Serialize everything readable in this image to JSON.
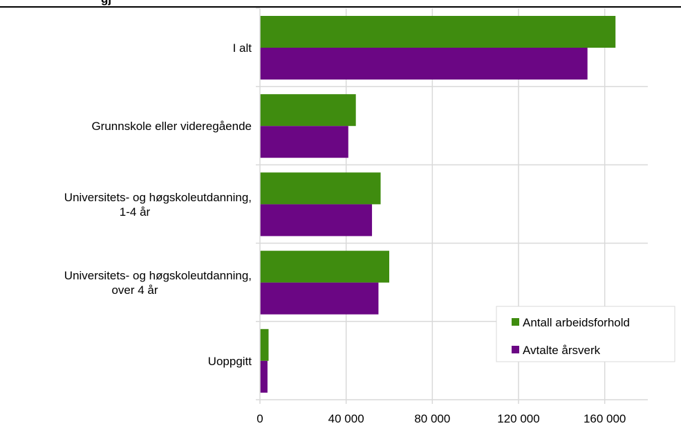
{
  "chart_data": {
    "type": "bar",
    "orientation": "horizontal",
    "title": "gj",
    "categories": [
      [
        "I alt"
      ],
      [
        "Grunnskole eller videregående"
      ],
      [
        "Universitets- og høgskoleutdanning,",
        "1-4 år"
      ],
      [
        "Universitets- og høgskoleutdanning,",
        "over 4 år"
      ],
      [
        "Uoppgitt"
      ]
    ],
    "series": [
      {
        "name": "Antall arbeidsforhold",
        "color": "#3f8c0f",
        "values": [
          165000,
          44500,
          56000,
          60000,
          4000
        ]
      },
      {
        "name": "Avtalte årsverk",
        "color": "#6b0684",
        "values": [
          152000,
          41000,
          52000,
          55000,
          3500
        ]
      }
    ],
    "xlim": [
      0,
      180000
    ],
    "xticks": [
      0,
      40000,
      80000,
      120000,
      160000
    ],
    "xtick_labels": [
      "0",
      "40 000",
      "80 000",
      "120 000",
      "160 000"
    ],
    "grid": true,
    "legend_position": "bottom-right",
    "xlabel": "",
    "ylabel": ""
  }
}
